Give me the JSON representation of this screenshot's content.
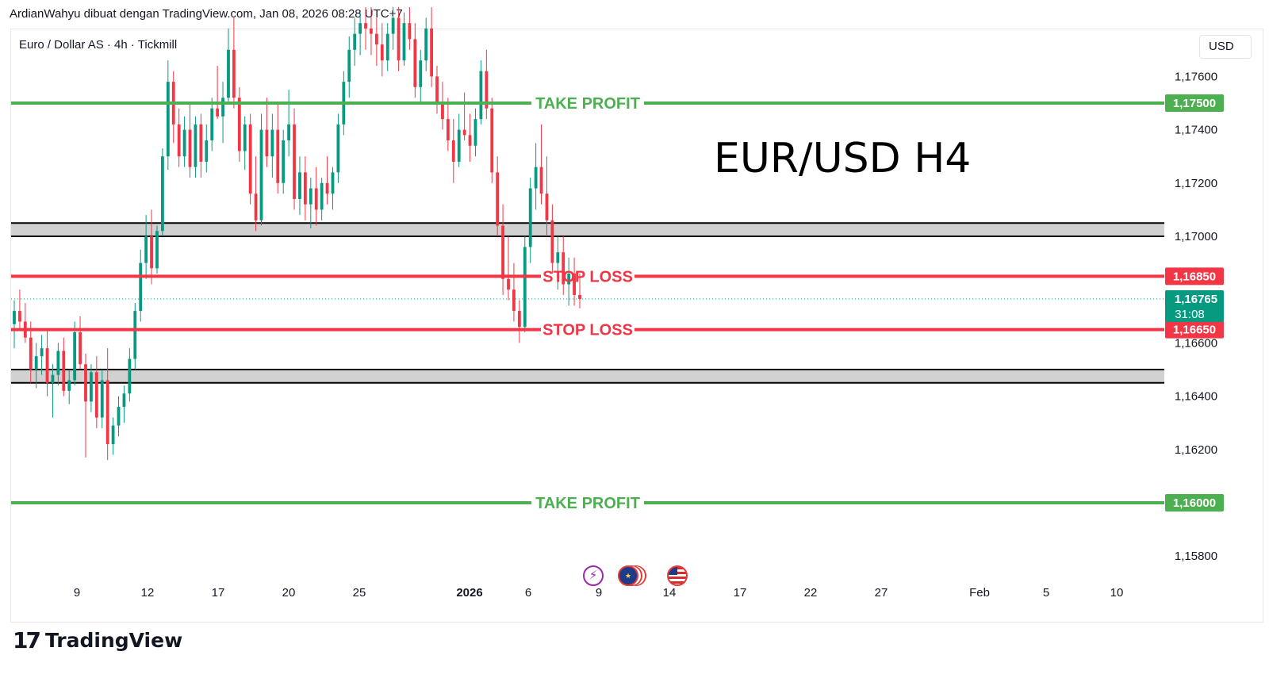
{
  "header": {
    "caption": "ArdianWahyu dibuat dengan TradingView.com, Jan 08, 2026 08:28 UTC+7",
    "symbol": "Euro / Dollar AS · 4h · Tickmill",
    "currency": "USD"
  },
  "annotation_title": "EUR/USD H4",
  "brand": {
    "mark": "17",
    "name": "TradingView"
  },
  "events": [
    "flash-event-icon",
    "eu-flag-icon",
    "us-flag-icon"
  ],
  "colors": {
    "up": "#089981",
    "down": "#f23645",
    "take_profit": "#4caf50",
    "stop_loss": "#f23645",
    "zone_fill": "#d1d1d1",
    "price_badge": "#089981"
  },
  "chart_data": {
    "type": "candlestick",
    "ylim": [
      1.157,
      1.1785
    ],
    "y_ticks": [
      {
        "value": 1.176,
        "label": "1,17600"
      },
      {
        "value": 1.174,
        "label": "1,17400"
      },
      {
        "value": 1.172,
        "label": "1,17200"
      },
      {
        "value": 1.17,
        "label": "1,17000"
      },
      {
        "value": 1.164,
        "label": "1,16400"
      },
      {
        "value": 1.162,
        "label": "1,16200"
      },
      {
        "value": 1.158,
        "label": "1,15800"
      }
    ],
    "partial_tick": {
      "value": 1.166,
      "label": "1,16600"
    },
    "x_ticks": [
      {
        "label": "9",
        "bold": false
      },
      {
        "label": "12",
        "bold": false
      },
      {
        "label": "17",
        "bold": false
      },
      {
        "label": "20",
        "bold": false
      },
      {
        "label": "25",
        "bold": false
      },
      {
        "label": "2026",
        "bold": true
      },
      {
        "label": "6",
        "bold": false
      },
      {
        "label": "9",
        "bold": false
      },
      {
        "label": "14",
        "bold": false
      },
      {
        "label": "17",
        "bold": false
      },
      {
        "label": "22",
        "bold": false
      },
      {
        "label": "27",
        "bold": false
      },
      {
        "label": "Feb",
        "bold": false
      },
      {
        "label": "5",
        "bold": false
      },
      {
        "label": "10",
        "bold": false
      }
    ],
    "levels": [
      {
        "kind": "take-profit",
        "label": "TAKE PROFIT",
        "price": 1.175,
        "price_label": "1,17500"
      },
      {
        "kind": "stop-loss",
        "label": "STOP LOSS",
        "price": 1.1685,
        "price_label": "1,16850"
      },
      {
        "kind": "stop-loss",
        "label": "STOP LOSS",
        "price": 1.1665,
        "price_label": "1,16650"
      },
      {
        "kind": "take-profit",
        "label": "TAKE PROFIT",
        "price": 1.16,
        "price_label": "1,16000"
      }
    ],
    "zones": [
      {
        "from": 1.17,
        "to": 1.1705
      },
      {
        "from": 1.1645,
        "to": 1.165
      }
    ],
    "current_price": {
      "price": 1.16765,
      "label": "1,16765",
      "countdown": "31:08"
    },
    "series_ohlc": [
      [
        1.1667,
        1.1676,
        1.1658,
        1.1672
      ],
      [
        1.1672,
        1.168,
        1.1665,
        1.1668
      ],
      [
        1.1668,
        1.1675,
        1.166,
        1.1662
      ],
      [
        1.1662,
        1.1668,
        1.1645,
        1.165
      ],
      [
        1.165,
        1.166,
        1.1643,
        1.1655
      ],
      [
        1.1655,
        1.1663,
        1.1648,
        1.1658
      ],
      [
        1.1658,
        1.1665,
        1.164,
        1.1645
      ],
      [
        1.1645,
        1.1652,
        1.1632,
        1.1648
      ],
      [
        1.1648,
        1.166,
        1.1644,
        1.1657
      ],
      [
        1.1657,
        1.1662,
        1.164,
        1.1642
      ],
      [
        1.1642,
        1.165,
        1.1637,
        1.1646
      ],
      [
        1.1646,
        1.1668,
        1.1644,
        1.1664
      ],
      [
        1.1664,
        1.167,
        1.165,
        1.1652
      ],
      [
        1.1652,
        1.1656,
        1.1617,
        1.1638
      ],
      [
        1.1638,
        1.1652,
        1.1634,
        1.1649
      ],
      [
        1.1649,
        1.1655,
        1.1628,
        1.1632
      ],
      [
        1.1632,
        1.165,
        1.1628,
        1.1646
      ],
      [
        1.1646,
        1.1658,
        1.1616,
        1.1622
      ],
      [
        1.1622,
        1.1632,
        1.1618,
        1.1629
      ],
      [
        1.1629,
        1.164,
        1.1625,
        1.1636
      ],
      [
        1.1636,
        1.1644,
        1.163,
        1.1641
      ],
      [
        1.1641,
        1.1658,
        1.1638,
        1.1654
      ],
      [
        1.1654,
        1.1675,
        1.165,
        1.1672
      ],
      [
        1.1672,
        1.1695,
        1.1668,
        1.169
      ],
      [
        1.169,
        1.1708,
        1.1684,
        1.17
      ],
      [
        1.17,
        1.171,
        1.1682,
        1.1688
      ],
      [
        1.1688,
        1.1704,
        1.1686,
        1.1702
      ],
      [
        1.1702,
        1.1733,
        1.17,
        1.173
      ],
      [
        1.173,
        1.1766,
        1.1725,
        1.1758
      ],
      [
        1.1758,
        1.1762,
        1.1735,
        1.1742
      ],
      [
        1.1742,
        1.1748,
        1.1726,
        1.173
      ],
      [
        1.173,
        1.1745,
        1.1726,
        1.174
      ],
      [
        1.174,
        1.175,
        1.1722,
        1.1726
      ],
      [
        1.1726,
        1.1745,
        1.1722,
        1.1742
      ],
      [
        1.1742,
        1.1746,
        1.1722,
        1.1728
      ],
      [
        1.1728,
        1.1742,
        1.1724,
        1.1736
      ],
      [
        1.1736,
        1.1752,
        1.1732,
        1.1748
      ],
      [
        1.1748,
        1.1764,
        1.1744,
        1.1745
      ],
      [
        1.1745,
        1.1758,
        1.1735,
        1.1752
      ],
      [
        1.1752,
        1.1778,
        1.175,
        1.177
      ],
      [
        1.177,
        1.1782,
        1.1748,
        1.1752
      ],
      [
        1.1752,
        1.1756,
        1.1728,
        1.1732
      ],
      [
        1.1732,
        1.1745,
        1.1725,
        1.1742
      ],
      [
        1.1742,
        1.1746,
        1.1712,
        1.1716
      ],
      [
        1.1716,
        1.173,
        1.1702,
        1.1706
      ],
      [
        1.1706,
        1.1746,
        1.1704,
        1.174
      ],
      [
        1.174,
        1.1752,
        1.1726,
        1.173
      ],
      [
        1.173,
        1.1746,
        1.1722,
        1.174
      ],
      [
        1.174,
        1.175,
        1.1716,
        1.172
      ],
      [
        1.172,
        1.174,
        1.1716,
        1.1736
      ],
      [
        1.1736,
        1.1755,
        1.173,
        1.1742
      ],
      [
        1.1742,
        1.1748,
        1.171,
        1.1714
      ],
      [
        1.1714,
        1.173,
        1.1708,
        1.1724
      ],
      [
        1.1724,
        1.173,
        1.1706,
        1.1712
      ],
      [
        1.1712,
        1.1722,
        1.1703,
        1.1718
      ],
      [
        1.1718,
        1.1726,
        1.1704,
        1.171
      ],
      [
        1.171,
        1.1722,
        1.1706,
        1.172
      ],
      [
        1.172,
        1.173,
        1.1712,
        1.1716
      ],
      [
        1.1716,
        1.1726,
        1.171,
        1.1724
      ],
      [
        1.1724,
        1.1746,
        1.172,
        1.1742
      ],
      [
        1.1742,
        1.1762,
        1.1738,
        1.1758
      ],
      [
        1.1758,
        1.1775,
        1.1752,
        1.177
      ],
      [
        1.177,
        1.1782,
        1.1764,
        1.1776
      ],
      [
        1.1776,
        1.1784,
        1.1768,
        1.178
      ],
      [
        1.178,
        1.1786,
        1.177,
        1.1778
      ],
      [
        1.1778,
        1.1786,
        1.1768,
        1.1776
      ],
      [
        1.1776,
        1.1782,
        1.1764,
        1.1772
      ],
      [
        1.1772,
        1.178,
        1.176,
        1.1766
      ],
      [
        1.1766,
        1.178,
        1.1762,
        1.1776
      ],
      [
        1.1776,
        1.1786,
        1.177,
        1.1782
      ],
      [
        1.1782,
        1.1786,
        1.1762,
        1.1766
      ],
      [
        1.1766,
        1.1784,
        1.1764,
        1.178
      ],
      [
        1.178,
        1.1786,
        1.177,
        1.1774
      ],
      [
        1.1774,
        1.178,
        1.1752,
        1.1756
      ],
      [
        1.1756,
        1.177,
        1.175,
        1.1766
      ],
      [
        1.1766,
        1.1782,
        1.1762,
        1.1778
      ],
      [
        1.1778,
        1.1786,
        1.1756,
        1.176
      ],
      [
        1.176,
        1.1764,
        1.1746,
        1.175
      ],
      [
        1.175,
        1.1758,
        1.174,
        1.1744
      ],
      [
        1.1744,
        1.1752,
        1.1732,
        1.1736
      ],
      [
        1.1736,
        1.1744,
        1.172,
        1.1728
      ],
      [
        1.1728,
        1.1746,
        1.1726,
        1.174
      ],
      [
        1.174,
        1.1754,
        1.1736,
        1.1738
      ],
      [
        1.1738,
        1.1746,
        1.1728,
        1.1734
      ],
      [
        1.1734,
        1.1748,
        1.173,
        1.1744
      ],
      [
        1.1744,
        1.1766,
        1.1742,
        1.1762
      ],
      [
        1.1762,
        1.177,
        1.1744,
        1.1748
      ],
      [
        1.1748,
        1.1752,
        1.172,
        1.1724
      ],
      [
        1.1724,
        1.173,
        1.17,
        1.1704
      ],
      [
        1.1704,
        1.1712,
        1.1678,
        1.1684
      ],
      [
        1.1684,
        1.17,
        1.1676,
        1.168
      ],
      [
        1.168,
        1.169,
        1.1668,
        1.1672
      ],
      [
        1.1672,
        1.1676,
        1.166,
        1.1666
      ],
      [
        1.1666,
        1.17,
        1.1664,
        1.1696
      ],
      [
        1.1696,
        1.1722,
        1.169,
        1.1718
      ],
      [
        1.1718,
        1.1735,
        1.171,
        1.1726
      ],
      [
        1.1726,
        1.1742,
        1.1712,
        1.1716
      ],
      [
        1.1716,
        1.173,
        1.17,
        1.1706
      ],
      [
        1.1706,
        1.1712,
        1.1686,
        1.169
      ],
      [
        1.169,
        1.17,
        1.168,
        1.1694
      ],
      [
        1.1694,
        1.17,
        1.1678,
        1.1682
      ],
      [
        1.1682,
        1.1692,
        1.1674,
        1.1686
      ],
      [
        1.1686,
        1.1692,
        1.1674,
        1.1678
      ],
      [
        1.1678,
        1.1686,
        1.1673,
        1.16765
      ]
    ]
  }
}
